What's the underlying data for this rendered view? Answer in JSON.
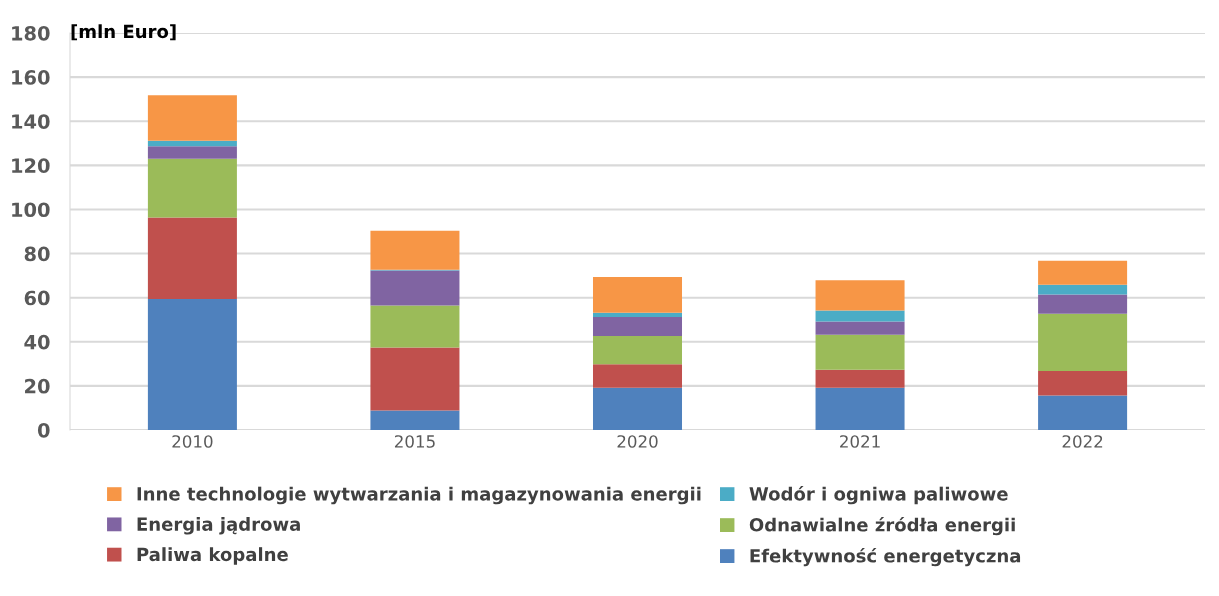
{
  "chart_data": {
    "type": "bar",
    "stacked": true,
    "ylabel": "[mln Euro]",
    "categories": [
      "2010",
      "2015",
      "2020",
      "2021",
      "2022"
    ],
    "series": [
      {
        "name": "Efektywność energetyczna",
        "color": "#4f81bd",
        "values": [
          59.4,
          8.8,
          19.2,
          19.2,
          15.6
        ]
      },
      {
        "name": "Paliwa kopalne",
        "color": "#c0504d",
        "values": [
          37.0,
          28.6,
          10.6,
          8.1,
          11.2
        ]
      },
      {
        "name": "Odnawialne źródła energii",
        "color": "#9bbb59",
        "values": [
          26.6,
          19.0,
          12.8,
          15.9,
          25.9
        ]
      },
      {
        "name": "Energia jądrowa",
        "color": "#8064a2",
        "values": [
          5.6,
          15.9,
          8.6,
          6.0,
          8.7
        ]
      },
      {
        "name": "Wodór i ogniwa paliwowe",
        "color": "#4bacc6",
        "values": [
          2.5,
          0.4,
          2.0,
          5.0,
          4.5
        ]
      },
      {
        "name": "Inne technologie wytwarzania i magazynowania energii",
        "color": "#f79646",
        "values": [
          20.7,
          17.6,
          16.2,
          13.7,
          10.8
        ]
      }
    ],
    "ylim": [
      0,
      180
    ],
    "yticks": [
      0,
      20,
      40,
      60,
      80,
      100,
      120,
      140,
      160,
      180
    ],
    "grid": "y",
    "legend": "bottom"
  }
}
